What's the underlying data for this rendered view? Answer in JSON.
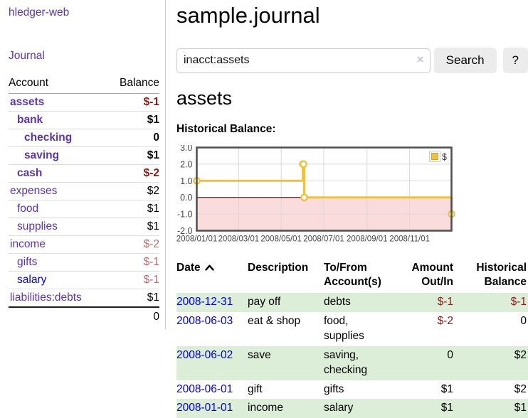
{
  "app": {
    "title": "hledger-web"
  },
  "sidebar": {
    "journal_link": "Journal",
    "accounts_table": {
      "account_header": "Account",
      "balance_header": "Balance",
      "rows": [
        {
          "name": "assets",
          "depth": 1,
          "bold": true,
          "balance": "$-1",
          "balance_style": "neg"
        },
        {
          "name": "bank",
          "depth": 2,
          "bold": true,
          "balance": "$1",
          "balance_style": "pos"
        },
        {
          "name": "checking",
          "depth": 3,
          "bold": true,
          "balance": "0",
          "balance_style": "pos"
        },
        {
          "name": "saving",
          "depth": 3,
          "bold": true,
          "balance": "$1",
          "balance_style": "pos"
        },
        {
          "name": "cash",
          "depth": 2,
          "bold": true,
          "balance": "$-2",
          "balance_style": "neg"
        },
        {
          "name": "expenses",
          "depth": 1,
          "bold": false,
          "balance": "$2",
          "balance_style": "pos"
        },
        {
          "name": "food",
          "depth": 2,
          "bold": false,
          "balance": "$1",
          "balance_style": "pos"
        },
        {
          "name": "supplies",
          "depth": 2,
          "bold": false,
          "balance": "$1",
          "balance_style": "pos"
        },
        {
          "name": "income",
          "depth": 1,
          "bold": false,
          "balance": "$-2",
          "balance_style": "neg-light"
        },
        {
          "name": "gifts",
          "depth": 2,
          "bold": false,
          "balance": "$-1",
          "balance_style": "neg-light"
        },
        {
          "name": "salary",
          "depth": 2,
          "bold": false,
          "balance": "$-1",
          "balance_style": "neg-light",
          "link_color": "blue"
        },
        {
          "name": "liabilities:debts",
          "depth": 1,
          "bold": false,
          "balance": "$1",
          "balance_style": "pos"
        }
      ],
      "total": "0"
    }
  },
  "header": {
    "title": "sample.journal"
  },
  "search": {
    "value": "inacct:assets",
    "clear_icon": "×",
    "button_label": "Search",
    "help_label": "?"
  },
  "account_page": {
    "heading": "assets",
    "chart_label": "Historical Balance:"
  },
  "chart_data": {
    "type": "line",
    "title": "Historical Balance",
    "step": true,
    "series": [
      {
        "name": "$",
        "color": "#edc240",
        "points": [
          [
            "2008-01-01",
            1
          ],
          [
            "2008-06-01",
            2
          ],
          [
            "2008-06-02",
            2
          ],
          [
            "2008-06-03",
            0
          ],
          [
            "2008-12-31",
            -1
          ]
        ]
      }
    ],
    "ylim": [
      -2,
      3
    ],
    "yticks": [
      3.0,
      2.0,
      1.0,
      0.0,
      -1.0,
      -2.0
    ],
    "xticks": [
      "2008/01/01",
      "2008/03/01",
      "2008/05/01",
      "2008/07/01",
      "2008/09/01",
      "2008/11/01"
    ],
    "legend_position": "top-right",
    "grid": true,
    "negative_region_color": "#fbdcdc",
    "zero_line_color": "#8b0000",
    "border_color": "#4d4d4d",
    "grid_color": "#d9d9d9",
    "tick_label_color": "#4a4a4a"
  },
  "register_table": {
    "headers": {
      "date": "Date",
      "description": "Description",
      "accounts_l1": "To/From",
      "accounts_l2": "Account(s)",
      "amount_l1": "Amount",
      "amount_l2": "Out/In",
      "balance_l1": "Historical",
      "balance_l2": "Balance"
    },
    "rows": [
      {
        "date": "2008-12-31",
        "description": "pay off",
        "accounts": "debts",
        "amount": "$-1",
        "amount_neg": true,
        "balance": "$-1",
        "balance_neg": true
      },
      {
        "date": "2008-06-03",
        "description": "eat & shop",
        "accounts": "food, supplies",
        "amount": "$-2",
        "amount_neg": true,
        "balance": "0",
        "balance_neg": false
      },
      {
        "date": "2008-06-02",
        "description": "save",
        "accounts": "saving, checking",
        "amount": "0",
        "amount_neg": false,
        "balance": "$2",
        "balance_neg": false
      },
      {
        "date": "2008-06-01",
        "description": "gift",
        "accounts": "gifts",
        "amount": "$1",
        "amount_neg": false,
        "balance": "$2",
        "balance_neg": false
      },
      {
        "date": "2008-01-01",
        "description": "income",
        "accounts": "salary",
        "amount": "$1",
        "amount_neg": false,
        "balance": "$1",
        "balance_neg": false
      }
    ]
  },
  "colors": {
    "link_purple": "#5c35a8",
    "link_blue": "#0000e0",
    "negative_red": "#8b1a14",
    "negative_red_light": "#bb6d6d",
    "row_stripe_green": "#dcedd8",
    "series_gold": "#edc240"
  }
}
